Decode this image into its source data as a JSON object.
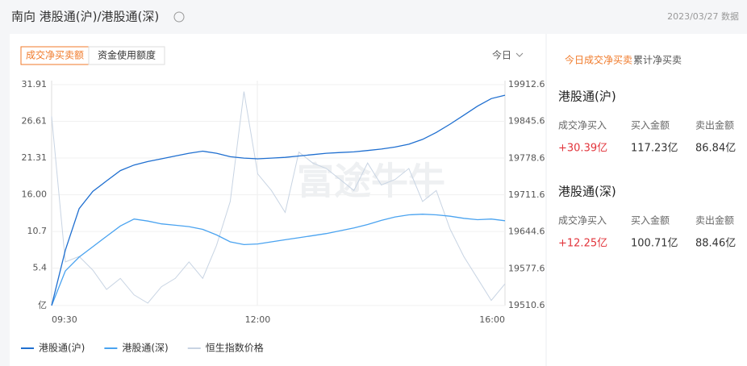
{
  "header": {
    "title": "南向 港股通(沪)/港股通(深)",
    "date": "2023/03/27 数据"
  },
  "tabs": [
    "成交净买卖额",
    "资金使用额度"
  ],
  "period": "今日",
  "watermark": "富途牛牛",
  "chart_data": {
    "type": "line",
    "categories": [
      "09:30",
      null,
      null,
      null,
      null,
      null,
      null,
      null,
      null,
      null,
      null,
      null,
      null,
      null,
      null,
      "12:00",
      null,
      null,
      null,
      null,
      null,
      null,
      null,
      null,
      null,
      null,
      null,
      null,
      null,
      null,
      null,
      null,
      null,
      "16:00"
    ],
    "series": [
      {
        "name": "港股通(沪)",
        "color": "#1f6fd0",
        "values": [
          0,
          8,
          14,
          16.5,
          18,
          19.5,
          20.3,
          20.8,
          21.2,
          21.6,
          22,
          22.3,
          22,
          21.5,
          21.3,
          21.2,
          21.3,
          21.4,
          21.6,
          21.8,
          22,
          22.1,
          22.2,
          22.4,
          22.6,
          22.9,
          23.3,
          24,
          25,
          26.2,
          27.5,
          28.8,
          29.9,
          30.39
        ]
      },
      {
        "name": "港股通(深)",
        "color": "#4aa3f0",
        "values": [
          0,
          5,
          7,
          8.5,
          10,
          11.5,
          12.5,
          12.2,
          11.8,
          11.6,
          11.4,
          11,
          10.2,
          9.2,
          8.8,
          8.9,
          9.2,
          9.5,
          9.8,
          10.1,
          10.4,
          10.8,
          11.2,
          11.7,
          12.3,
          12.8,
          13.1,
          13.2,
          13.1,
          12.9,
          12.6,
          12.4,
          12.5,
          12.25
        ]
      },
      {
        "name": "恒生指数价格",
        "color": "#c8d4e3",
        "axis": "y2",
        "values": [
          19855,
          19590,
          19600,
          19575,
          19540,
          19560,
          19530,
          19515,
          19545,
          19560,
          19590,
          19560,
          19620,
          19700,
          19900,
          19750,
          19720,
          19680,
          19790,
          19770,
          19760,
          19740,
          19720,
          19770,
          19730,
          19740,
          19760,
          19700,
          19720,
          19650,
          19600,
          19560,
          19520,
          19550
        ]
      }
    ],
    "ylim": [
      0,
      31.91
    ],
    "yticks": [
      {
        "value": 0,
        "label": "亿"
      },
      5.4,
      10.7,
      {
        "value": 16,
        "label": "16.00"
      },
      21.31,
      26.61,
      31.91
    ],
    "y2lim": [
      19510.6,
      19912.6
    ],
    "y2ticks": [
      19510.6,
      19577.6,
      19644.6,
      19711.6,
      19778.6,
      19845.6,
      19912.6
    ],
    "grid": true
  },
  "side": {
    "tabs": [
      "今日成交净买卖",
      "累计净买卖"
    ],
    "blocks": [
      {
        "title": "港股通(沪)",
        "headers": [
          "成交净买入",
          "买入金额",
          "卖出金额"
        ],
        "values": [
          "+30.39亿",
          "117.23亿",
          "86.84亿"
        ]
      },
      {
        "title": "港股通(深)",
        "headers": [
          "成交净买入",
          "买入金额",
          "卖出金额"
        ],
        "values": [
          "+12.25亿",
          "100.71亿",
          "88.46亿"
        ]
      }
    ]
  }
}
